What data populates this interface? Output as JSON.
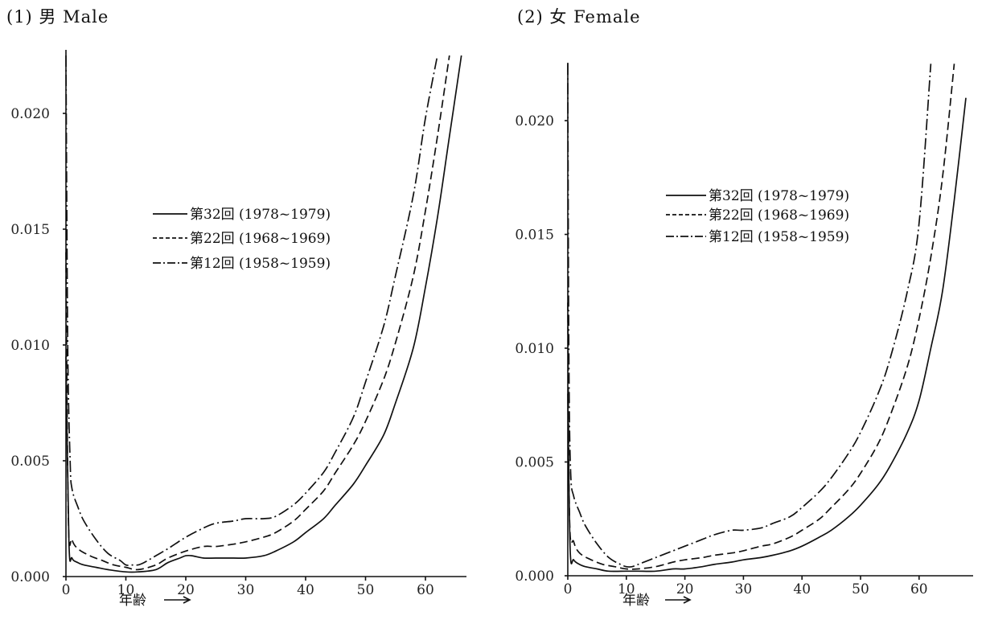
{
  "chart_data": [
    {
      "type": "line",
      "title": "(1) 男 Male",
      "xlabel": "年齢",
      "ylabel": "",
      "xlim": [
        0,
        68
      ],
      "ylim": [
        0,
        0.0225
      ],
      "xticks": [
        0,
        10,
        20,
        30,
        40,
        50,
        60
      ],
      "yticks": [
        0.0,
        0.005,
        0.01,
        0.015,
        0.02
      ],
      "ytick_labels": [
        "0.000",
        "0.005",
        "0.010",
        "0.015",
        "0.020"
      ],
      "legend_position": "center",
      "series": [
        {
          "name": "第32回 (1978~1979)",
          "dash": "solid",
          "x": [
            0,
            0.5,
            1,
            2,
            3,
            5,
            7,
            10,
            12,
            15,
            17,
            19,
            20,
            21,
            23,
            25,
            28,
            30,
            33,
            35,
            38,
            40,
            43,
            45,
            48,
            50,
            53,
            55,
            58,
            60,
            62,
            64,
            66
          ],
          "y": [
            0.0095,
            0.0015,
            0.0008,
            0.0006,
            0.0005,
            0.0004,
            0.0003,
            0.0002,
            0.0002,
            0.0003,
            0.0006,
            0.0008,
            0.0009,
            0.0009,
            0.0008,
            0.0008,
            0.0008,
            0.0008,
            0.0009,
            0.0011,
            0.0015,
            0.0019,
            0.0025,
            0.0031,
            0.004,
            0.0048,
            0.0061,
            0.0075,
            0.0099,
            0.0125,
            0.0155,
            0.019,
            0.0225
          ]
        },
        {
          "name": "第22回 (1968~1969)",
          "dash": "dashed",
          "x": [
            0,
            0.4,
            1,
            2,
            4,
            6,
            8,
            10,
            12,
            15,
            17,
            20,
            23,
            25,
            28,
            30,
            33,
            35,
            38,
            40,
            43,
            45,
            48,
            50,
            53,
            55,
            58,
            60,
            62,
            64
          ],
          "y": [
            0.014,
            0.0025,
            0.0016,
            0.0012,
            0.0009,
            0.0007,
            0.0005,
            0.0004,
            0.0003,
            0.0005,
            0.0008,
            0.0011,
            0.0013,
            0.0013,
            0.0014,
            0.0015,
            0.0017,
            0.0019,
            0.0024,
            0.0029,
            0.0037,
            0.0045,
            0.0057,
            0.0067,
            0.0085,
            0.0101,
            0.013,
            0.0158,
            0.019,
            0.0225
          ]
        },
        {
          "name": "第12回 (1958~1959)",
          "dash": "dashdot",
          "x": [
            0,
            0.3,
            0.7,
            1,
            2,
            3,
            5,
            7,
            9,
            10,
            11,
            12,
            13,
            15,
            17,
            20,
            23,
            25,
            28,
            30,
            33,
            35,
            38,
            40,
            43,
            45,
            48,
            50,
            53,
            55,
            58,
            60,
            62
          ],
          "y": [
            0.0225,
            0.01,
            0.005,
            0.0038,
            0.003,
            0.0024,
            0.0016,
            0.001,
            0.0007,
            0.0005,
            0.0005,
            0.0005,
            0.0006,
            0.0009,
            0.0012,
            0.0017,
            0.0021,
            0.0023,
            0.0024,
            0.0025,
            0.0025,
            0.0026,
            0.0031,
            0.0036,
            0.0045,
            0.0054,
            0.0069,
            0.0084,
            0.0108,
            0.013,
            0.0165,
            0.0198,
            0.0225
          ]
        }
      ]
    },
    {
      "type": "line",
      "title": "(2) 女 Female",
      "xlabel": "年齢",
      "ylabel": "",
      "xlim": [
        0,
        70
      ],
      "ylim": [
        0,
        0.0225
      ],
      "xticks": [
        0,
        10,
        20,
        30,
        40,
        50,
        60
      ],
      "yticks": [
        0.0,
        0.005,
        0.01,
        0.015,
        0.02
      ],
      "ytick_labels": [
        "0.000",
        "0.005",
        "0.010",
        "0.015",
        "0.020"
      ],
      "legend_position": "top-right",
      "series": [
        {
          "name": "第32回 (1978~1979)",
          "dash": "solid",
          "x": [
            0,
            0.4,
            1,
            2,
            3,
            5,
            7,
            10,
            12,
            15,
            18,
            20,
            23,
            25,
            28,
            30,
            33,
            35,
            38,
            40,
            43,
            45,
            48,
            50,
            53,
            55,
            58,
            60,
            62,
            64,
            66,
            68
          ],
          "y": [
            0.008,
            0.0012,
            0.0007,
            0.0005,
            0.0004,
            0.0003,
            0.0002,
            0.0002,
            0.0002,
            0.0002,
            0.0003,
            0.0003,
            0.0004,
            0.0005,
            0.0006,
            0.0007,
            0.0008,
            0.0009,
            0.0011,
            0.0013,
            0.0017,
            0.002,
            0.0026,
            0.0031,
            0.004,
            0.0048,
            0.0063,
            0.0077,
            0.01,
            0.0125,
            0.0165,
            0.021
          ]
        },
        {
          "name": "第22回 (1968~1969)",
          "dash": "dashed",
          "x": [
            0,
            0.3,
            1,
            2,
            4,
            6,
            8,
            10,
            12,
            15,
            18,
            20,
            23,
            25,
            28,
            30,
            33,
            35,
            38,
            40,
            43,
            45,
            48,
            50,
            53,
            55,
            58,
            60,
            62,
            64,
            66
          ],
          "y": [
            0.012,
            0.0025,
            0.0015,
            0.001,
            0.0007,
            0.0005,
            0.0004,
            0.0003,
            0.0003,
            0.0004,
            0.0006,
            0.0007,
            0.0008,
            0.0009,
            0.001,
            0.0011,
            0.0013,
            0.0014,
            0.0017,
            0.002,
            0.0025,
            0.003,
            0.0038,
            0.0045,
            0.0058,
            0.007,
            0.0092,
            0.0113,
            0.014,
            0.0175,
            0.0225
          ]
        },
        {
          "name": "第12回 (1958~1959)",
          "dash": "dashdot",
          "x": [
            0,
            0.2,
            0.5,
            1,
            2,
            3,
            5,
            7,
            9,
            10,
            11,
            12,
            15,
            18,
            20,
            23,
            25,
            28,
            30,
            33,
            35,
            38,
            40,
            43,
            45,
            48,
            50,
            53,
            55,
            58,
            60,
            62
          ],
          "y": [
            0.0225,
            0.009,
            0.0045,
            0.0035,
            0.0028,
            0.0022,
            0.0014,
            0.0008,
            0.0005,
            0.0004,
            0.0004,
            0.0005,
            0.0008,
            0.0011,
            0.0013,
            0.0016,
            0.0018,
            0.002,
            0.002,
            0.0021,
            0.0023,
            0.0026,
            0.003,
            0.0037,
            0.0043,
            0.0054,
            0.0063,
            0.008,
            0.0095,
            0.0125,
            0.0155,
            0.0225
          ]
        }
      ]
    }
  ]
}
